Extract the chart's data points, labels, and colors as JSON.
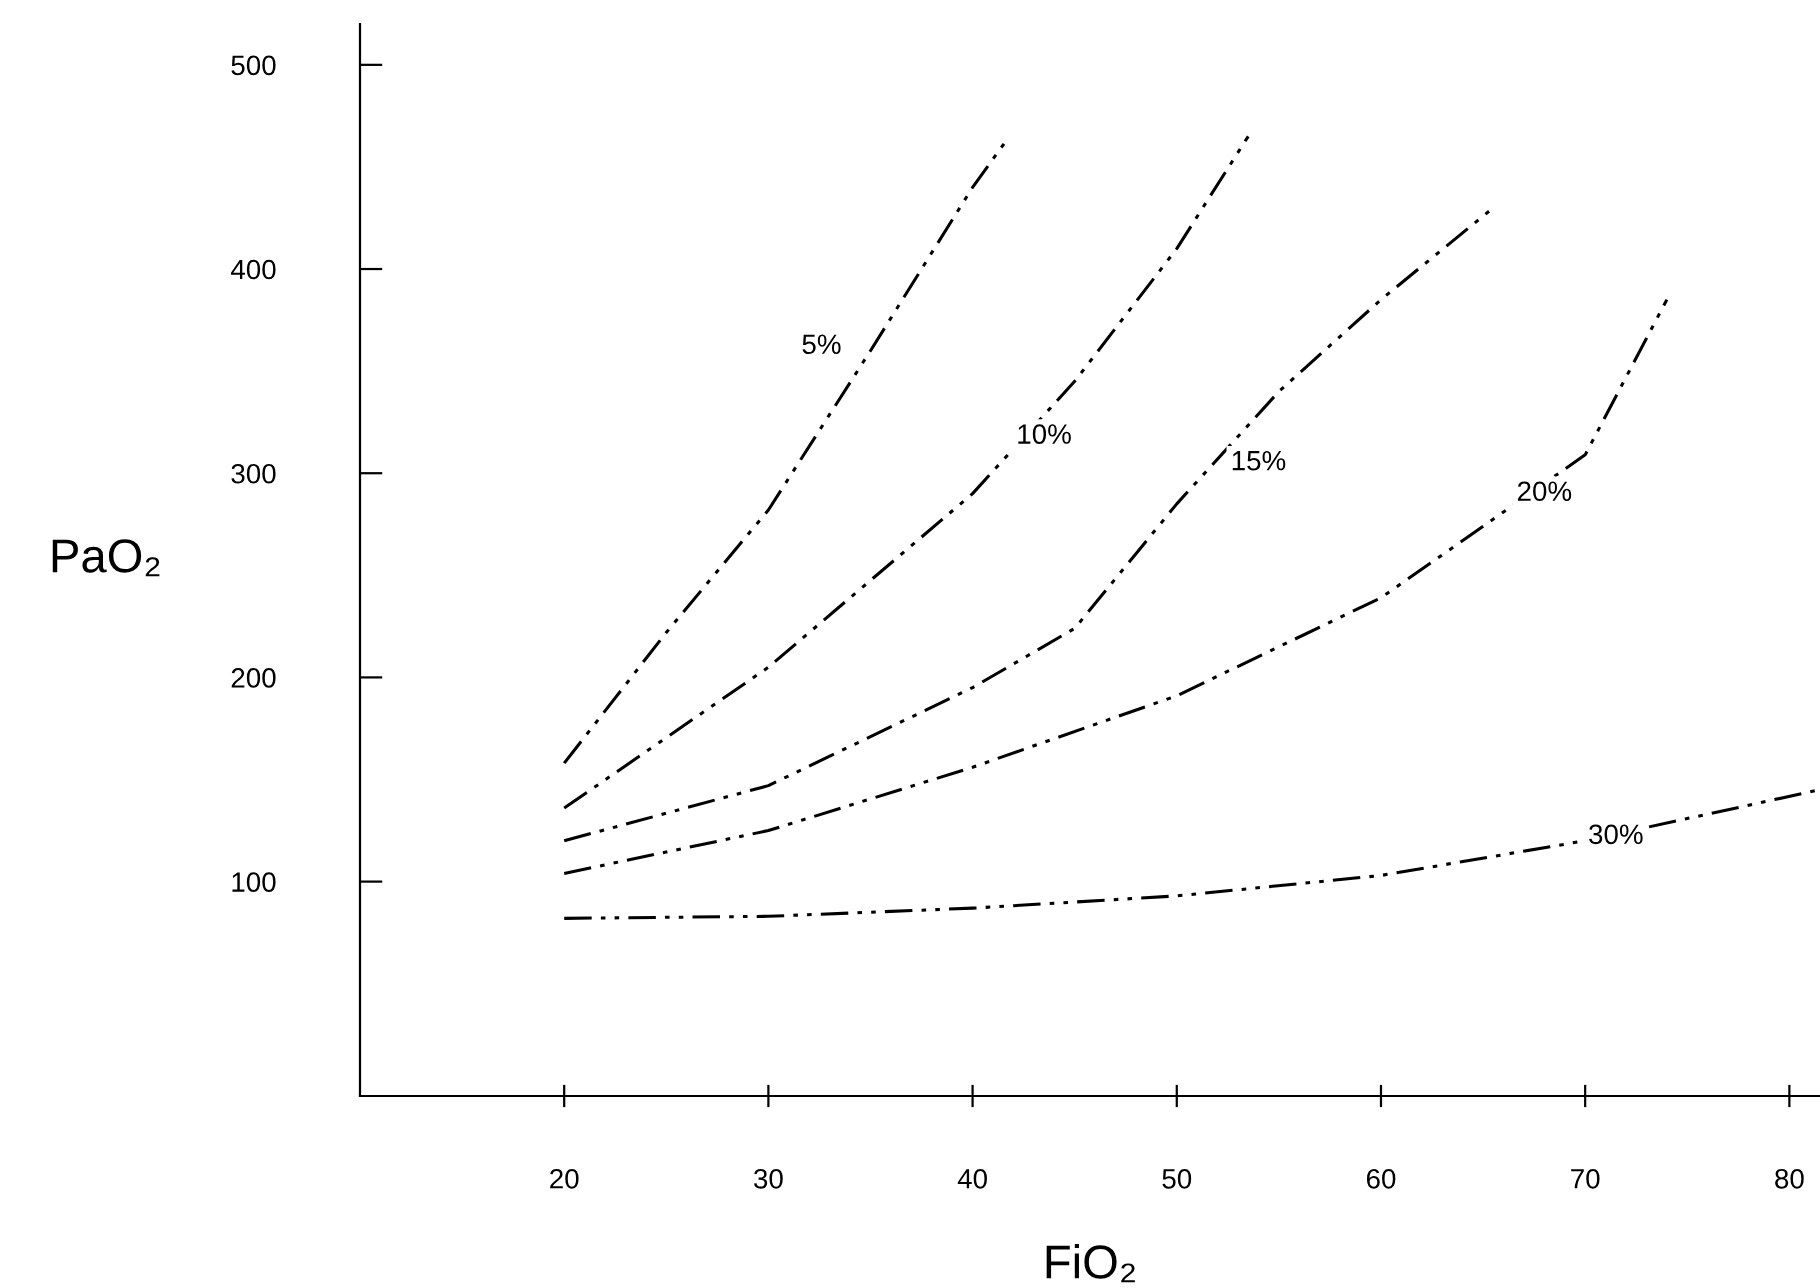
{
  "chart_data": {
    "type": "line",
    "xlabel": "FiO₂",
    "ylabel": "PaO₂",
    "xlim": [
      10,
      81.5
    ],
    "ylim": [
      -5,
      520
    ],
    "xticks": [
      20,
      30,
      40,
      50,
      60,
      70,
      80
    ],
    "yticks": [
      100,
      200,
      300,
      400,
      500
    ],
    "grid": false,
    "legend": false,
    "marker": "none",
    "line_style": "dashed",
    "series": [
      {
        "color": "#000000",
        "x": [
          20,
          25,
          30,
          35,
          40,
          41.8
        ],
        "values": [
          158,
          222,
          282,
          360,
          440,
          465
        ]
      },
      {
        "color": "#000000",
        "x": [
          20,
          30,
          40,
          45,
          50,
          53.5
        ],
        "values": [
          136,
          205,
          290,
          345,
          410,
          465
        ]
      },
      {
        "color": "#000000",
        "x": [
          20,
          30,
          40,
          45,
          50,
          55,
          60,
          65.5
        ],
        "values": [
          120,
          147,
          195,
          224,
          285,
          340,
          385,
          430
        ]
      },
      {
        "color": "#000000",
        "x": [
          20,
          30,
          40,
          50,
          60,
          70,
          74
        ],
        "values": [
          104,
          125,
          156,
          191,
          239,
          309,
          385
        ]
      },
      {
        "color": "#000000",
        "x": [
          20,
          30,
          40,
          50,
          60,
          70,
          81.5
        ],
        "values": [
          82,
          83,
          87,
          93,
          103,
          120,
          145
        ]
      }
    ],
    "annotations": [
      {
        "text": "5%",
        "x": 32.6,
        "y": 362
      },
      {
        "text": "10%",
        "x": 43.5,
        "y": 318
      },
      {
        "text": "15%",
        "x": 54,
        "y": 305
      },
      {
        "text": "20%",
        "x": 68,
        "y": 290
      },
      {
        "text": "30%",
        "x": 71.5,
        "y": 122
      }
    ]
  }
}
